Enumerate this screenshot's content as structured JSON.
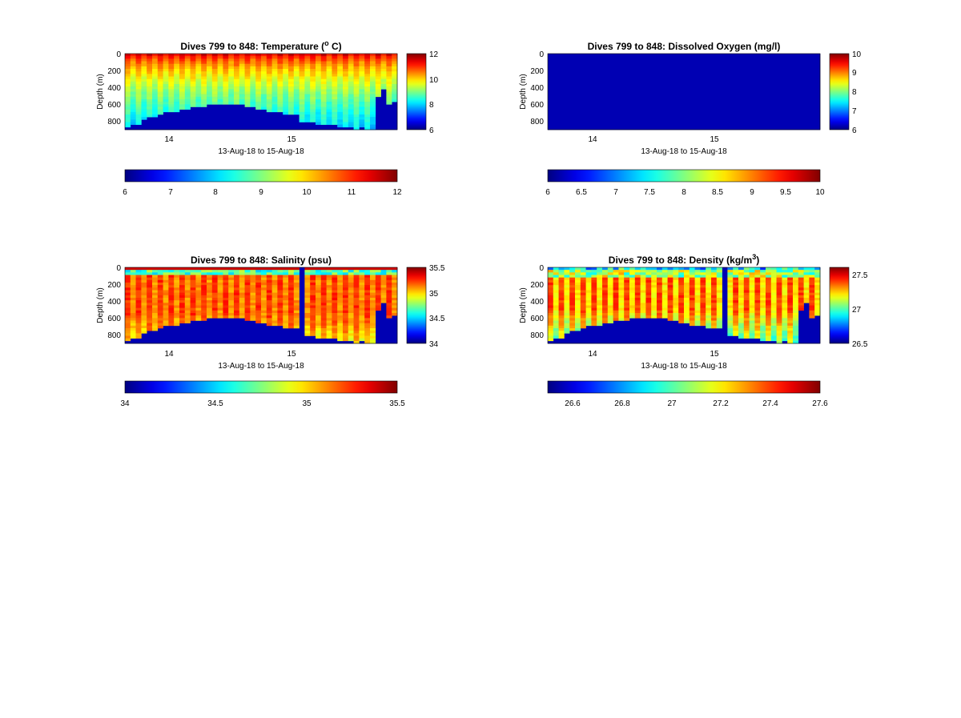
{
  "colormap": "jet",
  "chart_data": [
    {
      "id": "temperature",
      "type": "heatmap",
      "title": "Dives 799 to 848: Temperature (",
      "title_sup": "o",
      "title_post": " C)",
      "ylabel": "Depth (m)",
      "xlabel": "13-Aug-18 to 15-Aug-18",
      "y_ticks": [
        "0",
        "200",
        "400",
        "600",
        "800"
      ],
      "x_ticks": [
        "14",
        "15"
      ],
      "ylim": [
        900,
        0
      ],
      "clim": [
        6,
        12
      ],
      "cbar_ticks": [
        "12",
        "10",
        "8",
        "6"
      ],
      "hbar_ticks": [
        "6",
        "7",
        "8",
        "9",
        "10",
        "11",
        "12"
      ],
      "num_dives": 50,
      "bottom_depth_m": [
        860,
        845,
        840,
        790,
        760,
        745,
        720,
        700,
        690,
        680,
        660,
        650,
        640,
        630,
        620,
        605,
        605,
        605,
        605,
        605,
        605,
        610,
        620,
        640,
        660,
        670,
        690,
        690,
        700,
        710,
        720,
        730,
        810,
        810,
        820,
        825,
        830,
        840,
        850,
        860,
        880,
        880,
        885,
        880,
        890,
        900,
        520,
        430,
        600,
        560
      ]
    },
    {
      "id": "oxygen",
      "type": "heatmap",
      "title": "Dives 799 to 848: Dissolved Oxygen (mg/l)",
      "ylabel": "Depth (m)",
      "xlabel": "13-Aug-18 to 15-Aug-18",
      "y_ticks": [
        "0",
        "200",
        "400",
        "600",
        "800"
      ],
      "x_ticks": [
        "14",
        "15"
      ],
      "ylim": [
        900,
        0
      ],
      "clim": [
        6,
        10
      ],
      "cbar_ticks": [
        "10",
        "9",
        "8",
        "7",
        "6"
      ],
      "hbar_ticks": [
        "6",
        "6.5",
        "7",
        "7.5",
        "8",
        "8.5",
        "9",
        "9.5",
        "10"
      ],
      "uniform_value": 6
    },
    {
      "id": "salinity",
      "type": "heatmap",
      "title": "Dives 799 to 848: Salinity (psu)",
      "ylabel": "Depth (m)",
      "xlabel": "13-Aug-18 to 15-Aug-18",
      "y_ticks": [
        "0",
        "200",
        "400",
        "600",
        "800"
      ],
      "x_ticks": [
        "14",
        "15"
      ],
      "ylim": [
        900,
        0
      ],
      "clim": [
        34,
        35.5
      ],
      "cbar_ticks": [
        "35.5",
        "35",
        "34.5",
        "34"
      ],
      "hbar_ticks": [
        "34",
        "34.5",
        "35",
        "35.5"
      ],
      "missing_dive": 32
    },
    {
      "id": "density",
      "type": "heatmap",
      "title": "Dives 799 to 848: Density (kg/m",
      "title_sup": "3",
      "title_post": ")",
      "ylabel": "Depth (m)",
      "xlabel": "13-Aug-18 to 15-Aug-18",
      "y_ticks": [
        "0",
        "200",
        "400",
        "600",
        "800"
      ],
      "x_ticks": [
        "14",
        "15"
      ],
      "ylim": [
        900,
        0
      ],
      "clim": [
        26.5,
        27.6
      ],
      "cbar_ticks": [
        "27.5",
        "27",
        "26.5"
      ],
      "hbar_ticks": [
        "26.6",
        "26.8",
        "27",
        "27.2",
        "27.4",
        "27.6"
      ],
      "missing_dive": 32
    }
  ]
}
